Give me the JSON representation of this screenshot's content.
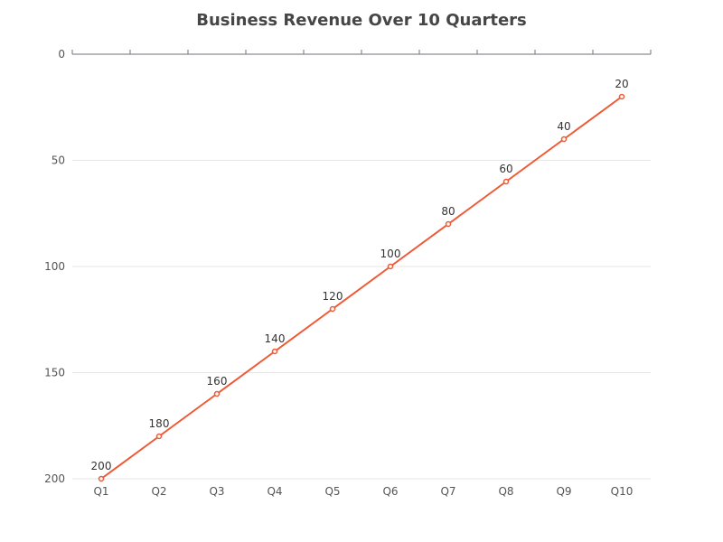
{
  "colors": {
    "series": "#ee5a35",
    "grid": "#e6e6e6",
    "axis": "#6e7079",
    "title": "#464646",
    "label": "#333333"
  },
  "chart_data": {
    "type": "line",
    "title": "Business Revenue Over 10 Quarters",
    "xlabel": "",
    "ylabel": "",
    "categories": [
      "Q1",
      "Q2",
      "Q3",
      "Q4",
      "Q5",
      "Q6",
      "Q7",
      "Q8",
      "Q9",
      "Q10"
    ],
    "series": [
      {
        "values": [
          200,
          180,
          160,
          140,
          120,
          100,
          80,
          60,
          40,
          20
        ],
        "data_labels": [
          "200",
          "180",
          "160",
          "140",
          "120",
          "100",
          "80",
          "60",
          "40",
          "20"
        ]
      }
    ],
    "ylim": [
      0,
      200
    ],
    "y_inverted": true,
    "y_ticks": [
      "0",
      "50",
      "100",
      "150",
      "200"
    ],
    "grid": true,
    "legend": "none"
  }
}
